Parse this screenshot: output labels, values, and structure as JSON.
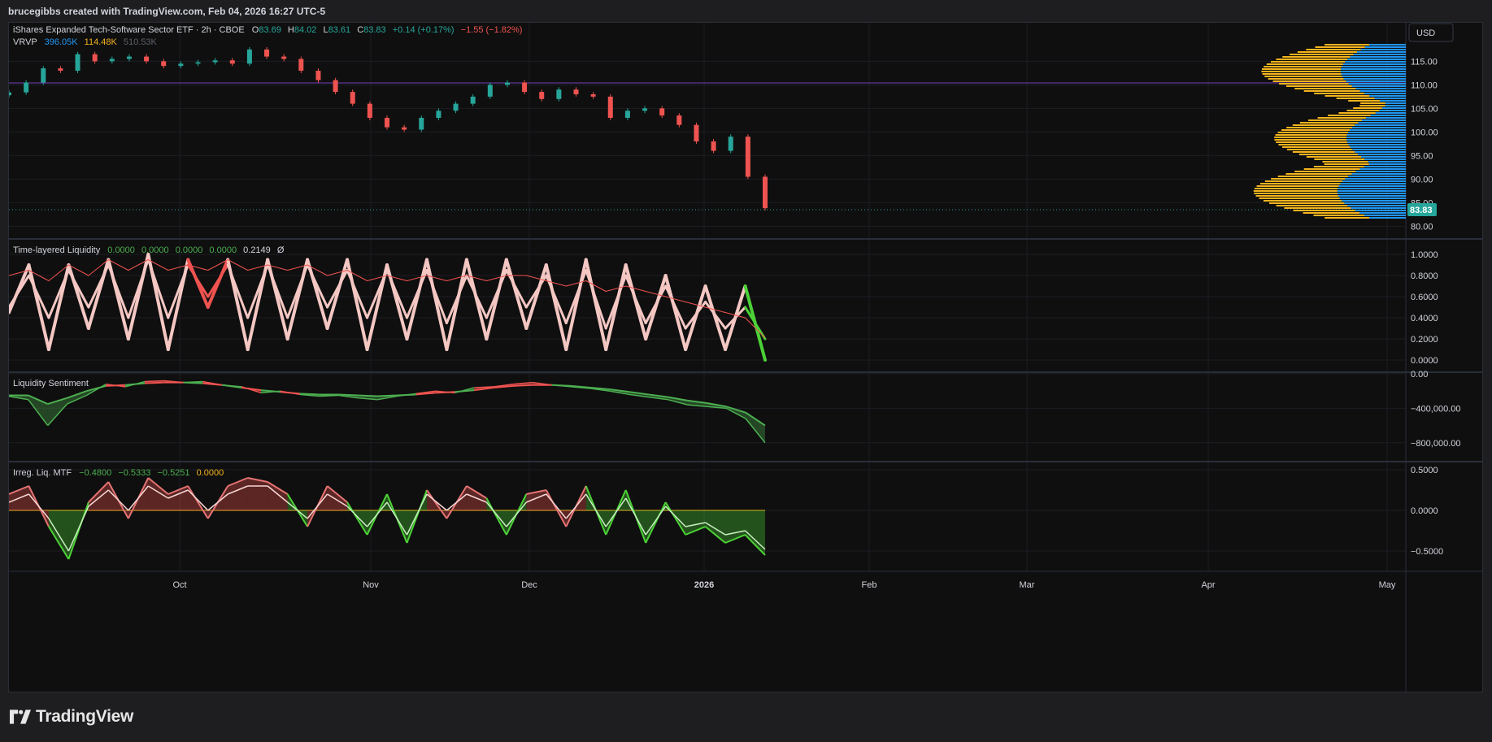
{
  "header": {
    "attribution": "brucegibbs created with TradingView.com, Feb 04, 2026 16:27 UTC-5"
  },
  "footer": {
    "brand": "TradingView",
    "logo_icon": "tradingview-logo-icon"
  },
  "main_pane": {
    "symbol": "iShares Expanded Tech-Software Sector ETF · 2h · CBOE",
    "o_label": "O",
    "o_value": "83.69",
    "h_label": "H",
    "h_value": "84.02",
    "l_label": "L",
    "l_value": "83.61",
    "c_label": "C",
    "c_value": "83.83",
    "change": "+0.14 (+0.17%)",
    "change2": "−1.55 (−1.82%)",
    "currency_button": "USD",
    "last_price": "83.83",
    "vrvp_label": "VRVP",
    "vrvp_v1": "396.05K",
    "vrvp_v2": "114.48K",
    "vrvp_v3": "510.53K",
    "colors": {
      "up": "#26a69a",
      "down": "#ef5350",
      "vp_up": "#2196f3",
      "vp_down": "#f5b41e"
    }
  },
  "panes": {
    "tll": {
      "title": "Time-layered Liquidity",
      "values": [
        "0.0000",
        "0.0000",
        "0.0000",
        "0.0000",
        "0.2149"
      ],
      "extra": "Ø"
    },
    "ls": {
      "title": "Liquidity Sentiment"
    },
    "irr": {
      "title": "Irreg. Liq. MTF",
      "values": [
        "−0.4800",
        "−0.5333",
        "−0.5251",
        "0.0000"
      ]
    }
  },
  "chart_data": [
    {
      "type": "candlestick",
      "title": "iShares Expanded Tech-Software Sector ETF · 2h · CBOE",
      "x": [
        "2025-09-03",
        "2025-09-06",
        "2025-09-10",
        "2025-09-13",
        "2025-09-17",
        "2025-09-21",
        "2025-09-25",
        "2025-09-28",
        "2025-10-01",
        "2025-10-05",
        "2025-10-09",
        "2025-10-13",
        "2025-10-16",
        "2025-10-20",
        "2025-10-24",
        "2025-10-27",
        "2025-10-30",
        "2025-11-01",
        "2025-11-04",
        "2025-11-07",
        "2025-11-11",
        "2025-11-14",
        "2025-11-18",
        "2025-11-22",
        "2025-11-25",
        "2025-11-29",
        "2025-12-03",
        "2025-12-07",
        "2025-12-10",
        "2025-12-13",
        "2025-12-17",
        "2025-12-20",
        "2025-12-24",
        "2025-12-28",
        "2026-01-01",
        "2026-01-04",
        "2026-01-08",
        "2026-01-11",
        "2026-01-15",
        "2026-01-18",
        "2026-01-22",
        "2026-01-25",
        "2026-01-29",
        "2026-02-01",
        "2026-02-04"
      ],
      "close": [
        108.4,
        110.5,
        113.5,
        113.0,
        116.5,
        115.0,
        115.5,
        116.0,
        115.0,
        114.0,
        114.5,
        114.8,
        115.2,
        114.5,
        117.5,
        116.0,
        115.5,
        113.0,
        111.0,
        108.5,
        106.0,
        103.0,
        101.0,
        100.5,
        103.0,
        104.5,
        106.0,
        107.5,
        110.0,
        110.5,
        108.5,
        107.0,
        109.0,
        108.0,
        107.5,
        103.0,
        104.5,
        105.0,
        103.5,
        101.5,
        98.0,
        96.0,
        99.0,
        90.5,
        83.83
      ],
      "last": 83.83,
      "y_ticks": [
        "115.00",
        "110.00",
        "105.00",
        "100.00",
        "95.00",
        "90.00",
        "85.00",
        "80.00"
      ],
      "ylim": [
        78,
        118
      ]
    },
    {
      "type": "line",
      "title": "Time-layered Liquidity",
      "series": [
        {
          "values": [
            0.45,
            0.9,
            0.1,
            0.9,
            0.3,
            0.95,
            0.2,
            1.0,
            0.1,
            0.95,
            0.5,
            0.95,
            0.1,
            0.95,
            0.2,
            0.95,
            0.3,
            0.95,
            0.1,
            0.9,
            0.2,
            0.95,
            0.1,
            0.95,
            0.2,
            0.95,
            0.3,
            0.9,
            0.1,
            0.95,
            0.1,
            0.9,
            0.2,
            0.8,
            0.1,
            0.7,
            0.1,
            0.7,
            0.0
          ]
        },
        {
          "values": [
            0.5,
            0.8,
            0.4,
            0.85,
            0.5,
            0.9,
            0.4,
            0.95,
            0.4,
            0.9,
            0.6,
            0.9,
            0.4,
            0.9,
            0.4,
            0.9,
            0.5,
            0.85,
            0.4,
            0.85,
            0.4,
            0.85,
            0.35,
            0.8,
            0.4,
            0.85,
            0.5,
            0.8,
            0.35,
            0.85,
            0.3,
            0.8,
            0.35,
            0.7,
            0.3,
            0.55,
            0.3,
            0.5,
            0.2
          ]
        },
        {
          "values": [
            0.8,
            0.85,
            0.75,
            0.9,
            0.8,
            0.95,
            0.85,
            0.95,
            0.85,
            0.9,
            0.85,
            0.95,
            0.85,
            0.9,
            0.85,
            0.9,
            0.8,
            0.85,
            0.75,
            0.8,
            0.75,
            0.8,
            0.75,
            0.8,
            0.75,
            0.8,
            0.8,
            0.75,
            0.7,
            0.75,
            0.65,
            0.7,
            0.65,
            0.6,
            0.55,
            0.5,
            0.45,
            0.4,
            0.21
          ]
        }
      ],
      "y_ticks": [
        "1.0000",
        "0.8000",
        "0.6000",
        "0.4000",
        "0.2000",
        "0.0000"
      ],
      "ylim": [
        0,
        1
      ]
    },
    {
      "type": "area",
      "title": "Liquidity Sentiment",
      "series": [
        {
          "values": [
            -260000,
            -300000,
            -600000,
            -350000,
            -250000,
            -120000,
            -150000,
            -90000,
            -80000,
            -100000,
            -90000,
            -130000,
            -150000,
            -220000,
            -200000,
            -240000,
            -260000,
            -250000,
            -280000,
            -300000,
            -260000,
            -230000,
            -200000,
            -220000,
            -160000,
            -150000,
            -120000,
            -100000,
            -130000,
            -150000,
            -170000,
            -200000,
            -240000,
            -270000,
            -300000,
            -360000,
            -380000,
            -400000,
            -520000,
            -800000
          ]
        },
        {
          "values": [
            -250000,
            -250000,
            -350000,
            -280000,
            -200000,
            -140000,
            -130000,
            -110000,
            -100000,
            -100000,
            -110000,
            -130000,
            -160000,
            -190000,
            -210000,
            -230000,
            -240000,
            -240000,
            -250000,
            -260000,
            -250000,
            -240000,
            -220000,
            -210000,
            -190000,
            -160000,
            -140000,
            -130000,
            -130000,
            -140000,
            -160000,
            -180000,
            -210000,
            -240000,
            -270000,
            -310000,
            -340000,
            -380000,
            -450000,
            -600000
          ]
        }
      ],
      "y_ticks": [
        "0.00",
        "−400,000.00",
        "−800,000.00"
      ],
      "ylim": [
        -1000000,
        0
      ]
    },
    {
      "type": "area",
      "title": "Irreg. Liq. MTF",
      "series": [
        {
          "values": [
            0.2,
            0.3,
            -0.2,
            -0.6,
            0.1,
            0.35,
            -0.1,
            0.4,
            0.2,
            0.3,
            -0.1,
            0.3,
            0.4,
            0.35,
            0.2,
            -0.2,
            0.3,
            0.1,
            -0.3,
            0.2,
            -0.4,
            0.25,
            -0.1,
            0.3,
            0.15,
            -0.3,
            0.2,
            0.25,
            -0.2,
            0.3,
            -0.3,
            0.25,
            -0.4,
            0.1,
            -0.3,
            -0.2,
            -0.4,
            -0.3,
            -0.55
          ]
        },
        {
          "values": [
            0.1,
            0.2,
            -0.1,
            -0.5,
            0.05,
            0.25,
            0.0,
            0.3,
            0.15,
            0.25,
            0.0,
            0.2,
            0.3,
            0.3,
            0.1,
            -0.1,
            0.2,
            0.05,
            -0.2,
            0.1,
            -0.3,
            0.2,
            0.0,
            0.2,
            0.1,
            -0.2,
            0.1,
            0.2,
            -0.1,
            0.2,
            -0.2,
            0.15,
            -0.3,
            0.05,
            -0.2,
            -0.15,
            -0.3,
            -0.25,
            -0.48
          ]
        }
      ],
      "y_ticks": [
        "0.5000",
        "0.0000",
        "−0.5000"
      ],
      "ylim": [
        -0.7,
        0.55
      ]
    }
  ],
  "time_axis": {
    "labels": [
      "Oct",
      "Nov",
      "Dec",
      "2026",
      "Feb",
      "Mar",
      "Apr",
      "May"
    ]
  }
}
